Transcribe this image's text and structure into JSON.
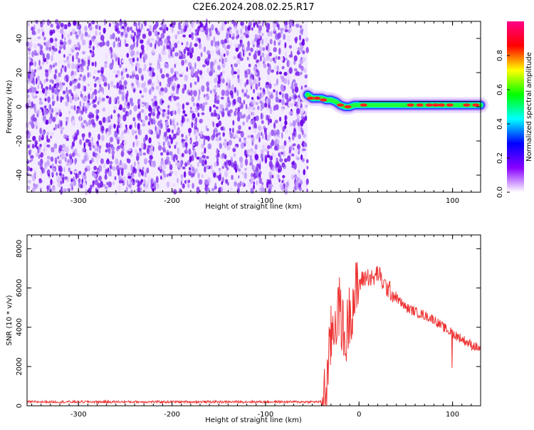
{
  "title": "C2E6.2024.208.02.25.R17",
  "chart_data": [
    {
      "type": "heatmap",
      "xlabel": "Height of straight line (km)",
      "ylabel": "Frequency (Hz)",
      "xlim": [
        -355,
        130
      ],
      "ylim": [
        -50,
        50
      ],
      "x_ticks": [
        -300,
        -200,
        -100,
        0,
        100
      ],
      "y_ticks": [
        -40,
        -20,
        0,
        20,
        40
      ],
      "noise_region_x": [
        -355,
        -55
      ],
      "signal_track": {
        "x": [
          -55,
          -50,
          -45,
          -40,
          -35,
          -30,
          -25,
          -20,
          -15,
          -10,
          -5,
          0,
          20,
          40,
          60,
          80,
          100,
          120,
          130
        ],
        "freq": [
          7,
          5,
          5,
          5,
          4,
          4,
          3,
          1,
          0,
          0,
          1,
          1,
          1,
          1,
          1,
          1,
          1,
          1,
          1
        ]
      },
      "colorbar": {
        "label": "Normalized spectral amplitude",
        "range": [
          0,
          1
        ],
        "ticks": [
          0.0,
          0.2,
          0.4,
          0.6,
          0.8
        ],
        "colors": [
          "#ffffff",
          "#8800ff",
          "#0000ff",
          "#00ffff",
          "#00ff00",
          "#ffff00",
          "#ff0000",
          "#ff0088"
        ]
      },
      "grid": false
    },
    {
      "type": "line",
      "xlabel": "Height of straight line (km)",
      "ylabel": "SNR (10 * v/v)",
      "xlim": [
        -355,
        130
      ],
      "ylim": [
        0,
        8700
      ],
      "x_ticks": [
        -300,
        -200,
        -100,
        0,
        100
      ],
      "y_ticks": [
        0,
        2000,
        4000,
        6000,
        8000
      ],
      "series": [
        {
          "color": "#ee3333",
          "x": [
            -355,
            -300,
            -200,
            -100,
            -40,
            -35,
            -30,
            -25,
            -20,
            -15,
            -10,
            -5,
            0,
            5,
            10,
            15,
            20,
            25,
            30,
            40,
            50,
            60,
            70,
            80,
            90,
            100,
            110,
            120,
            130
          ],
          "y": [
            200,
            200,
            200,
            200,
            200,
            700,
            3500,
            4500,
            5000,
            3000,
            4800,
            5500,
            6200,
            6500,
            6600,
            6400,
            6800,
            6300,
            6000,
            5500,
            5000,
            4800,
            4600,
            4400,
            4000,
            3700,
            3400,
            3100,
            2900
          ]
        }
      ],
      "grid": false
    }
  ]
}
